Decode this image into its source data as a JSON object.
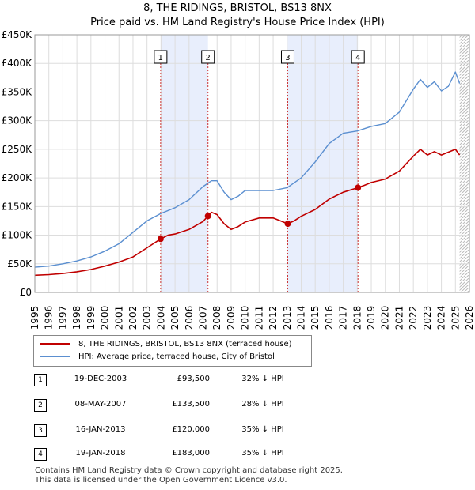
{
  "title": {
    "line1": "8, THE RIDINGS, BRISTOL, BS13 8NX",
    "line2": "Price paid vs. HM Land Registry's House Price Index (HPI)"
  },
  "colors": {
    "price_line": "#c00000",
    "hpi_line": "#5b8fd0",
    "shade": "#e8eefc",
    "grid": "#dddddd",
    "vline": "#cc3333"
  },
  "legend": {
    "price_label": "8, THE RIDINGS, BRISTOL, BS13 8NX (terraced house)",
    "hpi_label": "HPI: Average price, terraced house, City of Bristol"
  },
  "sales": [
    {
      "n": "1",
      "date": "19-DEC-2003",
      "price": "£93,500",
      "hpi": "32% ↓ HPI"
    },
    {
      "n": "2",
      "date": "08-MAY-2007",
      "price": "£133,500",
      "hpi": "28% ↓ HPI"
    },
    {
      "n": "3",
      "date": "16-JAN-2013",
      "price": "£120,000",
      "hpi": "35% ↓ HPI"
    },
    {
      "n": "4",
      "date": "19-JAN-2018",
      "price": "£183,000",
      "hpi": "35% ↓ HPI"
    }
  ],
  "footer": {
    "line1": "Contains HM Land Registry data © Crown copyright and database right 2025.",
    "line2": "This data is licensed under the Open Government Licence v3.0."
  },
  "chart_data": {
    "type": "line",
    "title": "8, THE RIDINGS, BRISTOL, BS13 8NX — Price paid vs. HM Land Registry's House Price Index (HPI)",
    "xlim": [
      1995,
      2026
    ],
    "ylim": [
      0,
      450000
    ],
    "x_ticks": [
      "1995",
      "1996",
      "1997",
      "1998",
      "1999",
      "2000",
      "2001",
      "2002",
      "2003",
      "2004",
      "2005",
      "2006",
      "2007",
      "2008",
      "2009",
      "2010",
      "2011",
      "2012",
      "2013",
      "2014",
      "2015",
      "2016",
      "2017",
      "2018",
      "2019",
      "2020",
      "2021",
      "2022",
      "2023",
      "2024",
      "2025",
      "2026"
    ],
    "y_ticks": [
      {
        "v": 0,
        "label": "£0"
      },
      {
        "v": 50000,
        "label": "£50K"
      },
      {
        "v": 100000,
        "label": "£100K"
      },
      {
        "v": 150000,
        "label": "£150K"
      },
      {
        "v": 200000,
        "label": "£200K"
      },
      {
        "v": 250000,
        "label": "£250K"
      },
      {
        "v": 300000,
        "label": "£300K"
      },
      {
        "v": 350000,
        "label": "£350K"
      },
      {
        "v": 400000,
        "label": "£400K"
      },
      {
        "v": 450000,
        "label": "£450K"
      }
    ],
    "shaded_ranges": [
      [
        2003.97,
        2007.35
      ],
      [
        2013.04,
        2018.05
      ]
    ],
    "hatch_from": 2025.3,
    "sale_points": [
      {
        "n": "1",
        "x": 2003.97,
        "y": 93500
      },
      {
        "n": "2",
        "x": 2007.35,
        "y": 133500
      },
      {
        "n": "3",
        "x": 2013.04,
        "y": 120000
      },
      {
        "n": "4",
        "x": 2018.05,
        "y": 183000
      }
    ],
    "series": [
      {
        "name": "8, THE RIDINGS, BRISTOL, BS13 8NX (terraced house)",
        "color": "#c00000",
        "x": [
          1995.0,
          1996.0,
          1997.0,
          1998.0,
          1999.0,
          2000.0,
          2001.0,
          2002.0,
          2003.0,
          2003.97,
          2004.5,
          2005.0,
          2006.0,
          2007.0,
          2007.35,
          2007.6,
          2008.0,
          2008.5,
          2009.0,
          2009.5,
          2010.0,
          2011.0,
          2012.0,
          2013.04,
          2013.5,
          2014.0,
          2015.0,
          2016.0,
          2017.0,
          2018.05,
          2018.5,
          2019.0,
          2020.0,
          2021.0,
          2022.0,
          2022.5,
          2023.0,
          2023.5,
          2024.0,
          2024.5,
          2025.0,
          2025.3
        ],
        "values": [
          30000,
          31000,
          33000,
          36000,
          40000,
          46000,
          53000,
          62000,
          78000,
          93500,
          100000,
          102000,
          110000,
          124000,
          133500,
          140000,
          136000,
          120000,
          110000,
          115000,
          123000,
          130000,
          130000,
          120000,
          125000,
          133000,
          145000,
          163000,
          175000,
          183000,
          187000,
          192000,
          198000,
          212000,
          238000,
          250000,
          240000,
          246000,
          240000,
          245000,
          250000,
          240000
        ]
      },
      {
        "name": "HPI: Average price, terraced house, City of Bristol",
        "color": "#5b8fd0",
        "x": [
          1995.0,
          1996.0,
          1997.0,
          1998.0,
          1999.0,
          2000.0,
          2001.0,
          2002.0,
          2003.0,
          2004.0,
          2005.0,
          2006.0,
          2007.0,
          2007.6,
          2008.0,
          2008.5,
          2009.0,
          2009.5,
          2010.0,
          2011.0,
          2012.0,
          2013.0,
          2014.0,
          2015.0,
          2016.0,
          2017.0,
          2018.0,
          2019.0,
          2020.0,
          2021.0,
          2022.0,
          2022.5,
          2023.0,
          2023.5,
          2024.0,
          2024.5,
          2025.0,
          2025.3
        ],
        "values": [
          44000,
          46000,
          50000,
          55000,
          62000,
          72000,
          85000,
          105000,
          125000,
          138000,
          148000,
          162000,
          185000,
          195000,
          195000,
          175000,
          162000,
          168000,
          178000,
          178000,
          178000,
          183000,
          200000,
          228000,
          260000,
          278000,
          282000,
          290000,
          295000,
          315000,
          355000,
          372000,
          358000,
          368000,
          352000,
          360000,
          385000,
          365000
        ]
      }
    ]
  }
}
